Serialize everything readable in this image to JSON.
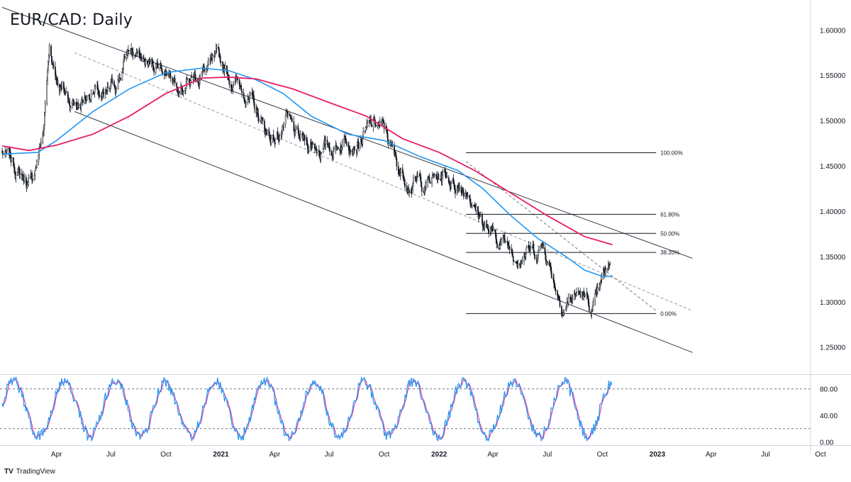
{
  "chart_title": "EUR/CAD: Daily",
  "brand": {
    "logo": "TV",
    "name": "TradingView"
  },
  "chart_data": [
    {
      "type": "candlestick",
      "title": "EUR/CAD: Daily",
      "ylim": [
        1.22,
        1.63
      ],
      "y_ticks": [
        "1.60000",
        "1.55000",
        "1.50000",
        "1.45000",
        "1.40000",
        "1.35000",
        "1.30000",
        "1.25000"
      ],
      "y_tick_values": [
        1.6,
        1.55,
        1.5,
        1.45,
        1.4,
        1.35,
        1.3,
        1.25
      ],
      "x_ticks": [
        {
          "label": "Apr",
          "date": "2020-04-01",
          "bold": false
        },
        {
          "label": "Jul",
          "date": "2020-07-01",
          "bold": false
        },
        {
          "label": "Oct",
          "date": "2020-10-01",
          "bold": false
        },
        {
          "label": "2021",
          "date": "2021-01-01",
          "bold": true
        },
        {
          "label": "Apr",
          "date": "2021-04-01",
          "bold": false
        },
        {
          "label": "Jul",
          "date": "2021-07-01",
          "bold": false
        },
        {
          "label": "Oct",
          "date": "2021-10-01",
          "bold": false
        },
        {
          "label": "2022",
          "date": "2022-01-01",
          "bold": true
        },
        {
          "label": "Apr",
          "date": "2022-04-01",
          "bold": false
        },
        {
          "label": "Jul",
          "date": "2022-07-01",
          "bold": false
        },
        {
          "label": "Oct",
          "date": "2022-10-01",
          "bold": false
        },
        {
          "label": "2023",
          "date": "2023-01-01",
          "bold": true
        },
        {
          "label": "Apr",
          "date": "2023-04-01",
          "bold": false
        },
        {
          "label": "Jul",
          "date": "2023-07-01",
          "bold": false
        },
        {
          "label": "Oct",
          "date": "2023-10-01",
          "bold": false
        }
      ],
      "price_path": [
        [
          "2020-01-01",
          1.465
        ],
        [
          "2020-02-01",
          1.44
        ],
        [
          "2020-02-20",
          1.43
        ],
        [
          "2020-03-10",
          1.49
        ],
        [
          "2020-03-20",
          1.58
        ],
        [
          "2020-04-01",
          1.55
        ],
        [
          "2020-04-20",
          1.525
        ],
        [
          "2020-05-10",
          1.52
        ],
        [
          "2020-06-01",
          1.535
        ],
        [
          "2020-06-20",
          1.52
        ],
        [
          "2020-07-10",
          1.54
        ],
        [
          "2020-08-01",
          1.58
        ],
        [
          "2020-08-15",
          1.57
        ],
        [
          "2020-09-01",
          1.56
        ],
        [
          "2020-09-20",
          1.565
        ],
        [
          "2020-10-15",
          1.55
        ],
        [
          "2020-11-10",
          1.545
        ],
        [
          "2020-12-01",
          1.555
        ],
        [
          "2020-12-20",
          1.56
        ],
        [
          "2021-01-01",
          1.56
        ],
        [
          "2021-01-20",
          1.545
        ],
        [
          "2021-02-10",
          1.535
        ],
        [
          "2021-02-28",
          1.51
        ],
        [
          "2021-03-15",
          1.49
        ],
        [
          "2021-04-01",
          1.48
        ],
        [
          "2021-04-20",
          1.5
        ],
        [
          "2021-05-10",
          1.475
        ],
        [
          "2021-06-01",
          1.475
        ],
        [
          "2021-06-20",
          1.47
        ],
        [
          "2021-07-10",
          1.47
        ],
        [
          "2021-08-01",
          1.485
        ],
        [
          "2021-08-20",
          1.48
        ],
        [
          "2021-09-05",
          1.49
        ],
        [
          "2021-09-20",
          1.495
        ],
        [
          "2021-10-05",
          1.485
        ],
        [
          "2021-10-25",
          1.445
        ],
        [
          "2021-11-15",
          1.435
        ],
        [
          "2021-12-05",
          1.43
        ],
        [
          "2021-12-25",
          1.435
        ],
        [
          "2022-01-10",
          1.44
        ],
        [
          "2022-02-01",
          1.43
        ],
        [
          "2022-02-20",
          1.425
        ],
        [
          "2022-03-01",
          1.405
        ],
        [
          "2022-03-15",
          1.39
        ],
        [
          "2022-04-01",
          1.37
        ],
        [
          "2022-04-20",
          1.365
        ],
        [
          "2022-05-10",
          1.355
        ],
        [
          "2022-05-25",
          1.36
        ],
        [
          "2022-06-10",
          1.355
        ],
        [
          "2022-06-25",
          1.365
        ],
        [
          "2022-07-10",
          1.33
        ],
        [
          "2022-07-25",
          1.3
        ],
        [
          "2022-08-10",
          1.305
        ],
        [
          "2022-08-25",
          1.31
        ],
        [
          "2022-09-05",
          1.3
        ],
        [
          "2022-09-15",
          1.29
        ],
        [
          "2022-09-25",
          1.305
        ],
        [
          "2022-10-05",
          1.325
        ],
        [
          "2022-10-12",
          1.33
        ],
        [
          "2022-10-16",
          1.355
        ]
      ],
      "ma_blue": [
        [
          "2020-01-01",
          1.463
        ],
        [
          "2020-03-01",
          1.465
        ],
        [
          "2020-04-01",
          1.478
        ],
        [
          "2020-06-01",
          1.51
        ],
        [
          "2020-08-01",
          1.535
        ],
        [
          "2020-10-01",
          1.553
        ],
        [
          "2020-12-01",
          1.558
        ],
        [
          "2021-01-15",
          1.555
        ],
        [
          "2021-03-01",
          1.545
        ],
        [
          "2021-04-15",
          1.53
        ],
        [
          "2021-06-01",
          1.505
        ],
        [
          "2021-08-01",
          1.485
        ],
        [
          "2021-10-01",
          1.478
        ],
        [
          "2021-12-01",
          1.46
        ],
        [
          "2022-02-01",
          1.445
        ],
        [
          "2022-03-15",
          1.425
        ],
        [
          "2022-05-01",
          1.395
        ],
        [
          "2022-06-15",
          1.37
        ],
        [
          "2022-08-01",
          1.35
        ],
        [
          "2022-09-01",
          1.335
        ],
        [
          "2022-10-01",
          1.328
        ],
        [
          "2022-10-18",
          1.328
        ]
      ],
      "ma_pink": [
        [
          "2020-01-01",
          1.472
        ],
        [
          "2020-02-15",
          1.467
        ],
        [
          "2020-04-01",
          1.473
        ],
        [
          "2020-06-01",
          1.485
        ],
        [
          "2020-08-01",
          1.505
        ],
        [
          "2020-10-01",
          1.53
        ],
        [
          "2020-12-01",
          1.547
        ],
        [
          "2021-01-15",
          1.548
        ],
        [
          "2021-03-01",
          1.546
        ],
        [
          "2021-05-01",
          1.535
        ],
        [
          "2021-07-01",
          1.52
        ],
        [
          "2021-09-01",
          1.505
        ],
        [
          "2021-11-01",
          1.48
        ],
        [
          "2022-01-01",
          1.465
        ],
        [
          "2022-03-01",
          1.445
        ],
        [
          "2022-05-01",
          1.42
        ],
        [
          "2022-07-01",
          1.395
        ],
        [
          "2022-09-01",
          1.372
        ],
        [
          "2022-10-18",
          1.363
        ]
      ],
      "channel_upper": [
        [
          "2020-01-01",
          1.625
        ],
        [
          "2023-03-01",
          1.348
        ]
      ],
      "channel_lower": [
        [
          "2020-05-01",
          1.51
        ],
        [
          "2023-03-01",
          1.244
        ]
      ],
      "channel_middle": [
        [
          "2020-05-01",
          1.575
        ],
        [
          "2023-03-01",
          1.29
        ]
      ],
      "fib_diagonal": [
        [
          "2022-02-15",
          1.455
        ],
        [
          "2022-12-30",
          1.29
        ]
      ],
      "fibonacci": [
        {
          "label": "100.00%",
          "value": 1.4645
        },
        {
          "label": "61.80%",
          "value": 1.3965
        },
        {
          "label": "50.00%",
          "value": 1.3755
        },
        {
          "label": "38.20%",
          "value": 1.3545
        },
        {
          "label": "0.00%",
          "value": 1.287
        }
      ],
      "fib_range": [
        "2022-02-15",
        "2022-12-30"
      ],
      "colors": {
        "candles": "#131722",
        "ma_blue": "#2196f3",
        "ma_pink": "#e91e63",
        "trendline": "#363a45",
        "dashed": "#9598a1",
        "grid": "#e0e3eb"
      }
    },
    {
      "type": "line",
      "name": "stochastic",
      "ylim": [
        -5,
        100
      ],
      "y_ticks": [
        "80.00",
        "40.00",
        "0.00"
      ],
      "y_tick_values": [
        80,
        40,
        0
      ],
      "levels": [
        80,
        20
      ],
      "colors": {
        "k": "#2196f3",
        "d": "#e040a0",
        "level": "#787b86"
      }
    }
  ]
}
